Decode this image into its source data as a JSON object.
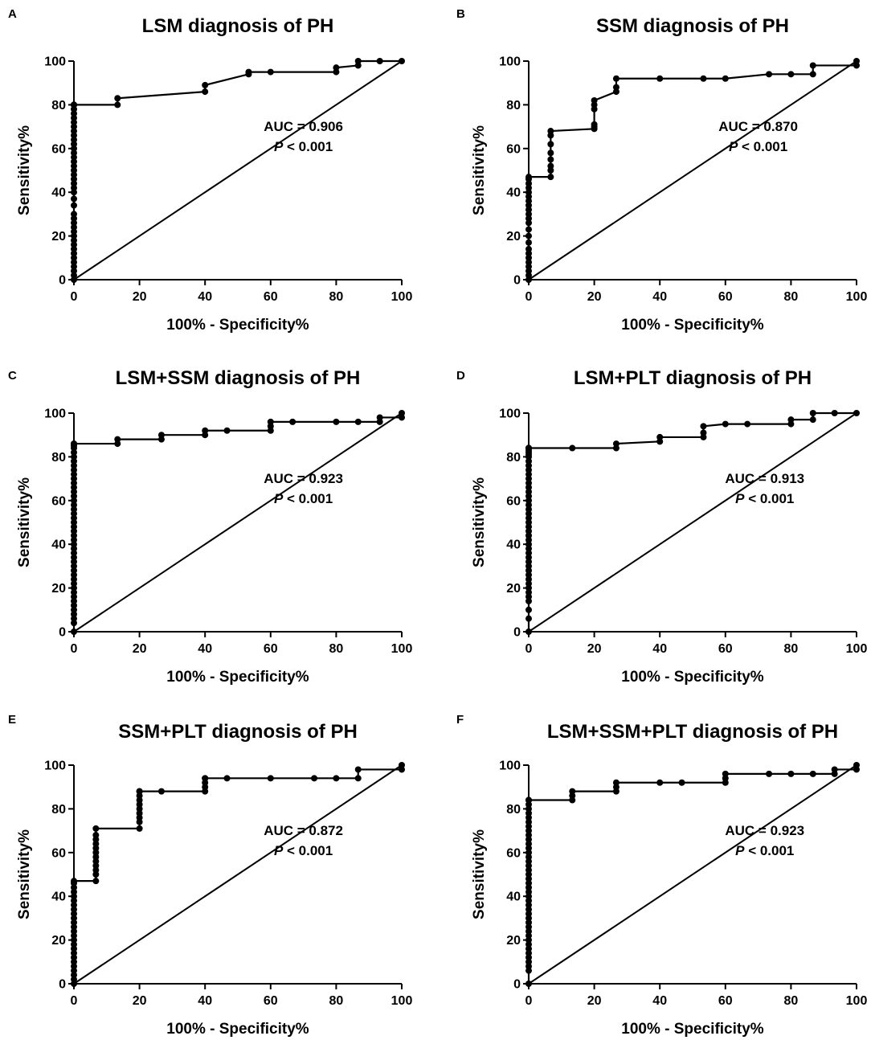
{
  "chart_data": [
    {
      "panel": "A",
      "type": "line",
      "title": "LSM diagnosis of PH",
      "xlabel": "100% - Specificity%",
      "ylabel": "Sensitivity%",
      "xlim": [
        0,
        100
      ],
      "ylim": [
        0,
        100
      ],
      "xticks": [
        "0",
        "20",
        "40",
        "60",
        "80",
        "100"
      ],
      "yticks": [
        "0",
        "20",
        "40",
        "60",
        "80",
        "100"
      ],
      "auc_text": "AUC = 0.906",
      "p_symbol": "P",
      "p_rest": " < 0.001",
      "reference_line": [
        [
          0,
          0
        ],
        [
          100,
          100
        ]
      ],
      "series": [
        {
          "name": "ROC",
          "x": [
            0,
            0,
            0,
            0,
            0,
            0,
            0,
            0,
            0,
            0,
            0,
            0,
            0,
            0,
            0,
            0,
            0,
            0,
            0,
            0,
            0,
            0,
            0,
            0,
            0,
            0,
            0,
            0,
            0,
            0,
            0,
            0,
            0,
            0,
            0,
            0,
            0,
            0,
            0,
            0,
            0,
            13.3,
            13.3,
            40,
            40,
            53.3,
            53.3,
            60,
            80,
            80,
            86.7,
            86.7,
            93.3,
            100
          ],
          "y": [
            0,
            2,
            4,
            6,
            8,
            10,
            12,
            14,
            16,
            18,
            20,
            22,
            24,
            26,
            28,
            30,
            34,
            37,
            40,
            42,
            44,
            46,
            48,
            50,
            52,
            54,
            56,
            58,
            60,
            62,
            64,
            66,
            68,
            70,
            72,
            74,
            76,
            78,
            80,
            80,
            80,
            80,
            83,
            86,
            89,
            94,
            95,
            95,
            95,
            97,
            98,
            100,
            100,
            100
          ]
        }
      ]
    },
    {
      "panel": "B",
      "type": "line",
      "title": "SSM diagnosis of PH",
      "xlabel": "100% - Specificity%",
      "ylabel": "Sensitivity%",
      "xlim": [
        0,
        100
      ],
      "ylim": [
        0,
        100
      ],
      "xticks": [
        "0",
        "20",
        "40",
        "60",
        "80",
        "100"
      ],
      "yticks": [
        "0",
        "20",
        "40",
        "60",
        "80",
        "100"
      ],
      "auc_text": "AUC = 0.870",
      "p_symbol": "P",
      "p_rest": " < 0.001",
      "reference_line": [
        [
          0,
          0
        ],
        [
          100,
          100
        ]
      ],
      "series": [
        {
          "name": "ROC",
          "x": [
            0,
            0,
            0,
            0,
            0,
            0,
            0,
            0,
            0,
            0,
            0,
            0,
            0,
            0,
            0,
            0,
            0,
            0,
            0,
            0,
            0,
            0,
            0,
            6.7,
            6.7,
            6.7,
            6.7,
            6.7,
            6.7,
            6.7,
            6.7,
            20,
            20,
            20,
            20,
            20,
            20,
            26.7,
            26.7,
            26.7,
            40,
            53.3,
            60,
            73.3,
            80,
            86.7,
            86.7,
            100,
            100
          ],
          "y": [
            0,
            2,
            4,
            6,
            8,
            10,
            12,
            14,
            17,
            20,
            23,
            26,
            28,
            30,
            32,
            34,
            36,
            38,
            40,
            42,
            44,
            46,
            47,
            47,
            50,
            52,
            55,
            58,
            62,
            66,
            68,
            69,
            70,
            71,
            78,
            80,
            82,
            86,
            88,
            92,
            92,
            92,
            92,
            94,
            94,
            94,
            98,
            98,
            100
          ]
        }
      ]
    },
    {
      "panel": "C",
      "type": "line",
      "title": "LSM+SSM diagnosis of PH",
      "xlabel": "100% - Specificity%",
      "ylabel": "Sensitivity%",
      "xlim": [
        0,
        100
      ],
      "ylim": [
        0,
        100
      ],
      "xticks": [
        "0",
        "20",
        "40",
        "60",
        "80",
        "100"
      ],
      "yticks": [
        "0",
        "20",
        "40",
        "60",
        "80",
        "100"
      ],
      "auc_text": "AUC = 0.923",
      "p_symbol": "P",
      "p_rest": " < 0.001",
      "reference_line": [
        [
          0,
          0
        ],
        [
          100,
          100
        ]
      ],
      "series": [
        {
          "name": "ROC",
          "x": [
            0,
            0,
            0,
            0,
            0,
            0,
            0,
            0,
            0,
            0,
            0,
            0,
            0,
            0,
            0,
            0,
            0,
            0,
            0,
            0,
            0,
            0,
            0,
            0,
            0,
            0,
            0,
            0,
            0,
            0,
            0,
            0,
            0,
            0,
            0,
            0,
            0,
            0,
            0,
            0,
            0,
            0,
            0,
            0,
            0,
            13.3,
            13.3,
            26.7,
            26.7,
            40,
            40,
            46.7,
            60,
            60,
            60,
            66.7,
            80,
            86.7,
            93.3,
            93.3,
            100,
            100
          ],
          "y": [
            0,
            4,
            6,
            8,
            10,
            12,
            14,
            16,
            18,
            20,
            22,
            24,
            26,
            28,
            30,
            32,
            34,
            36,
            38,
            40,
            42,
            44,
            46,
            48,
            50,
            52,
            54,
            56,
            58,
            60,
            62,
            64,
            66,
            68,
            70,
            72,
            74,
            76,
            78,
            80,
            82,
            84,
            85,
            86,
            86,
            86,
            88,
            88,
            90,
            90,
            92,
            92,
            92,
            94,
            96,
            96,
            96,
            96,
            96,
            98,
            98,
            100
          ]
        }
      ]
    },
    {
      "panel": "D",
      "type": "line",
      "title": "LSM+PLT diagnosis of PH",
      "xlabel": "100% - Specificity%",
      "ylabel": "Sensitivity%",
      "xlim": [
        0,
        100
      ],
      "ylim": [
        0,
        100
      ],
      "xticks": [
        "0",
        "20",
        "40",
        "60",
        "80",
        "100"
      ],
      "yticks": [
        "0",
        "20",
        "40",
        "60",
        "80",
        "100"
      ],
      "auc_text": "AUC = 0.913",
      "p_symbol": "P",
      "p_rest": " < 0.001",
      "reference_line": [
        [
          0,
          0
        ],
        [
          100,
          100
        ]
      ],
      "series": [
        {
          "name": "ROC",
          "x": [
            0,
            0,
            0,
            0,
            0,
            0,
            0,
            0,
            0,
            0,
            0,
            0,
            0,
            0,
            0,
            0,
            0,
            0,
            0,
            0,
            0,
            0,
            0,
            0,
            0,
            0,
            0,
            0,
            0,
            0,
            0,
            0,
            0,
            0,
            0,
            0,
            0,
            0,
            0,
            0,
            0,
            0,
            0,
            0,
            13.3,
            26.7,
            26.7,
            40,
            40,
            53.3,
            53.3,
            53.3,
            60,
            66.7,
            80,
            80,
            86.7,
            86.7,
            93.3,
            100
          ],
          "y": [
            0,
            6,
            10,
            14,
            16,
            18,
            20,
            22,
            24,
            26,
            28,
            30,
            32,
            34,
            36,
            38,
            40,
            42,
            44,
            46,
            48,
            50,
            52,
            54,
            56,
            58,
            60,
            62,
            64,
            66,
            68,
            70,
            72,
            74,
            76,
            78,
            80,
            81,
            82,
            83,
            84,
            84,
            84,
            84,
            84,
            84,
            86,
            87,
            89,
            89,
            91,
            94,
            95,
            95,
            95,
            97,
            97,
            100,
            100,
            100
          ]
        }
      ]
    },
    {
      "panel": "E",
      "type": "line",
      "title": "SSM+PLT diagnosis of PH",
      "xlabel": "100% - Specificity%",
      "ylabel": "Sensitivity%",
      "xlim": [
        0,
        100
      ],
      "ylim": [
        0,
        100
      ],
      "xticks": [
        "0",
        "20",
        "40",
        "60",
        "80",
        "100"
      ],
      "yticks": [
        "0",
        "20",
        "40",
        "60",
        "80",
        "100"
      ],
      "auc_text": "AUC = 0.872",
      "p_symbol": "P",
      "p_rest": " < 0.001",
      "reference_line": [
        [
          0,
          0
        ],
        [
          100,
          100
        ]
      ],
      "series": [
        {
          "name": "ROC",
          "x": [
            0,
            0,
            0,
            0,
            0,
            0,
            0,
            0,
            0,
            0,
            0,
            0,
            0,
            0,
            0,
            0,
            0,
            0,
            0,
            0,
            0,
            0,
            0,
            0,
            0,
            6.7,
            6.7,
            6.7,
            6.7,
            6.7,
            6.7,
            6.7,
            6.7,
            6.7,
            6.7,
            6.7,
            6.7,
            20,
            20,
            20,
            20,
            20,
            20,
            20,
            20,
            20,
            20,
            26.7,
            40,
            40,
            40,
            40,
            40,
            46.7,
            60,
            73.3,
            80,
            86.7,
            86.7,
            100,
            100
          ],
          "y": [
            0,
            2,
            4,
            6,
            8,
            10,
            12,
            14,
            16,
            18,
            20,
            22,
            24,
            26,
            28,
            30,
            32,
            34,
            36,
            38,
            40,
            42,
            44,
            46,
            47,
            47,
            50,
            52,
            54,
            56,
            58,
            60,
            62,
            64,
            66,
            68,
            71,
            71,
            74,
            76,
            78,
            80,
            82,
            84,
            86,
            88,
            88,
            88,
            88,
            90,
            92,
            94,
            94,
            94,
            94,
            94,
            94,
            94,
            98,
            98,
            100
          ]
        }
      ]
    },
    {
      "panel": "F",
      "type": "line",
      "title": "LSM+SSM+PLT diagnosis of PH",
      "xlabel": "100% - Specificity%",
      "ylabel": "Sensitivity%",
      "xlim": [
        0,
        100
      ],
      "ylim": [
        0,
        100
      ],
      "xticks": [
        "0",
        "20",
        "40",
        "60",
        "80",
        "100"
      ],
      "yticks": [
        "0",
        "20",
        "40",
        "60",
        "80",
        "100"
      ],
      "auc_text": "AUC = 0.923",
      "p_symbol": "P",
      "p_rest": " < 0.001",
      "reference_line": [
        [
          0,
          0
        ],
        [
          100,
          100
        ]
      ],
      "series": [
        {
          "name": "ROC",
          "x": [
            0,
            0,
            0,
            0,
            0,
            0,
            0,
            0,
            0,
            0,
            0,
            0,
            0,
            0,
            0,
            0,
            0,
            0,
            0,
            0,
            0,
            0,
            0,
            0,
            0,
            0,
            0,
            0,
            0,
            0,
            0,
            0,
            0,
            0,
            0,
            0,
            0,
            0,
            0,
            0,
            0,
            0,
            0,
            13.3,
            13.3,
            13.3,
            26.7,
            26.7,
            26.7,
            40,
            46.7,
            60,
            60,
            60,
            73.3,
            80,
            86.7,
            93.3,
            93.3,
            100,
            100
          ],
          "y": [
            0,
            6,
            8,
            10,
            12,
            14,
            16,
            18,
            20,
            22,
            24,
            26,
            28,
            30,
            32,
            34,
            36,
            38,
            40,
            42,
            44,
            46,
            48,
            50,
            52,
            54,
            56,
            58,
            60,
            62,
            64,
            66,
            68,
            70,
            72,
            74,
            76,
            78,
            80,
            82,
            84,
            84,
            84,
            84,
            86,
            88,
            88,
            90,
            92,
            92,
            92,
            92,
            94,
            96,
            96,
            96,
            96,
            96,
            98,
            98,
            100
          ]
        }
      ]
    }
  ]
}
